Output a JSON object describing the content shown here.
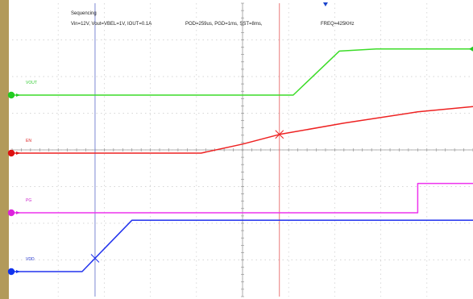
{
  "header": {
    "title": "Sequencing",
    "conditions": "Vin=12V, Vout=VBEL=1V, IOUT=0.1A",
    "timing": "POD=259us, PGD=1ms, SST=8ms,",
    "frequency": "FREQ=425KHz"
  },
  "chart_data": {
    "type": "line",
    "title": "Sequencing",
    "xlabel": "",
    "ylabel": "",
    "grid": true,
    "x_divisions": 10,
    "y_divisions": 8,
    "x_unit": "div",
    "xlim": [
      0,
      10
    ],
    "trigger_x": 6.8,
    "cursors_x": [
      1.8,
      5.8
    ],
    "series": [
      {
        "name": "VOUT",
        "color": "#3cdc28",
        "marker_color": "#22cc22",
        "label_color": "#33cc33",
        "points": [
          [
            0,
            0
          ],
          [
            6.1,
            0
          ],
          [
            7.1,
            1.05
          ],
          [
            7.9,
            1.1
          ],
          [
            10,
            1.1
          ]
        ]
      },
      {
        "name": "EN",
        "color": "#ee2222",
        "marker_color": "#dd1111",
        "label_color": "#dd2222",
        "points": [
          [
            0,
            0
          ],
          [
            4.1,
            0
          ],
          [
            5.0,
            0.12
          ],
          [
            5.8,
            0.25
          ],
          [
            7.2,
            0.4
          ],
          [
            8.8,
            0.55
          ],
          [
            10,
            0.62
          ]
        ]
      },
      {
        "name": "PG",
        "color": "#ee33ee",
        "marker_color": "#dd22dd",
        "label_color": "#cc22cc",
        "points": [
          [
            0,
            0
          ],
          [
            8.8,
            0
          ],
          [
            8.8,
            0.45
          ],
          [
            10,
            0.45
          ]
        ]
      },
      {
        "name": "VDD",
        "color": "#2233ee",
        "marker_color": "#1133ee",
        "label_color": "#2233cc",
        "points": [
          [
            0,
            0
          ],
          [
            1.52,
            0
          ],
          [
            2.6,
            0.85
          ],
          [
            10,
            0.85
          ]
        ]
      }
    ],
    "annotations": [
      {
        "series": "VDD",
        "x": 1.8,
        "marker": "x"
      },
      {
        "series": "EN",
        "x": 5.8,
        "marker": "x"
      }
    ]
  }
}
